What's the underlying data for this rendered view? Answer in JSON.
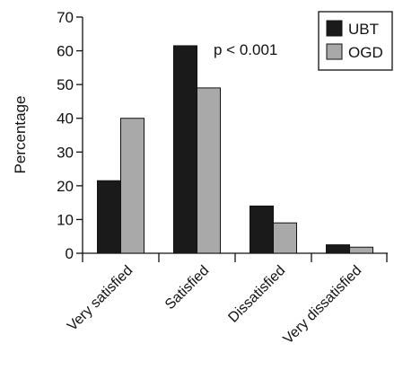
{
  "chart_data": {
    "type": "bar",
    "title": "",
    "xlabel": "",
    "ylabel": "Percentage",
    "ylim": [
      0,
      70
    ],
    "yticks": [
      0,
      10,
      20,
      30,
      40,
      50,
      60,
      70
    ],
    "categories": [
      "Very satisfied",
      "Satisfied",
      "Dissatisfied",
      "Very dissatisfied"
    ],
    "series": [
      {
        "name": "UBT",
        "values": [
          21.5,
          61.5,
          14,
          2.5
        ],
        "color": "#1a1a1a"
      },
      {
        "name": "OGD",
        "values": [
          40,
          49,
          9,
          1.8
        ],
        "color": "#a9a9a9"
      }
    ],
    "annotation": "p < 0.001",
    "legend_position": "top-right",
    "grid": false
  }
}
